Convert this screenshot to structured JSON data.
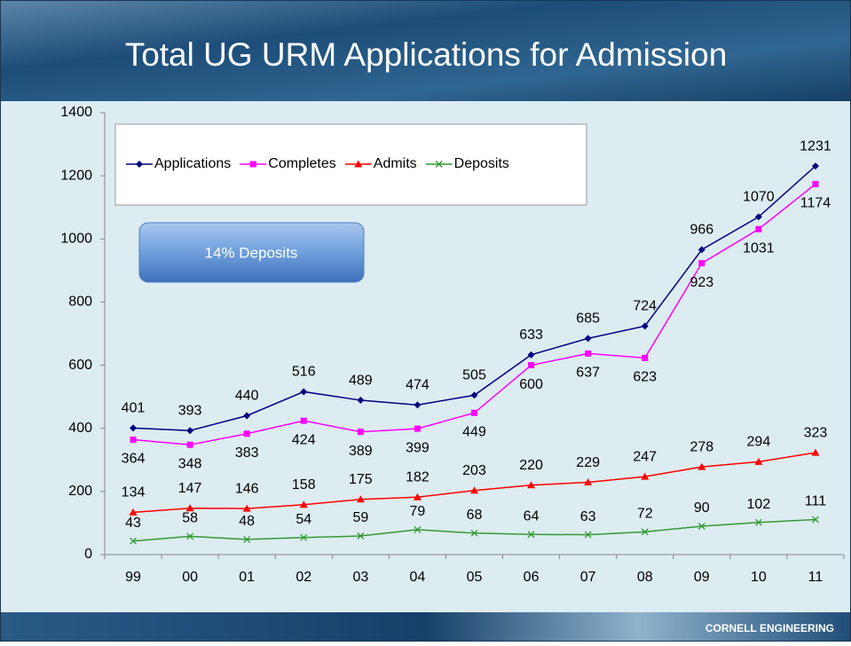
{
  "chart_data": {
    "type": "line",
    "title": "Total UG URM Applications for Admission",
    "categories": [
      "99",
      "00",
      "01",
      "02",
      "03",
      "04",
      "05",
      "06",
      "07",
      "08",
      "09",
      "10",
      "11"
    ],
    "series": [
      {
        "name": "Applications",
        "color": "#000080",
        "marker": "diamond",
        "values": [
          401,
          393,
          440,
          516,
          489,
          474,
          505,
          633,
          685,
          724,
          966,
          1070,
          1231
        ]
      },
      {
        "name": "Completes",
        "color": "#ff00ff",
        "marker": "square",
        "values": [
          364,
          348,
          383,
          424,
          389,
          399,
          449,
          600,
          637,
          623,
          923,
          1031,
          1174
        ]
      },
      {
        "name": "Admits",
        "color": "#ff0000",
        "marker": "triangle",
        "values": [
          134,
          147,
          146,
          158,
          175,
          182,
          203,
          220,
          229,
          247,
          278,
          294,
          323
        ]
      },
      {
        "name": "Deposits",
        "color": "#339933",
        "marker": "x",
        "values": [
          43,
          58,
          48,
          54,
          59,
          79,
          68,
          64,
          63,
          72,
          90,
          102,
          111
        ]
      }
    ],
    "ylim": [
      0,
      1400
    ],
    "yticks": [
      0,
      200,
      400,
      600,
      800,
      1000,
      1200,
      1400
    ],
    "annotation": "14% Deposits",
    "footer": "CORNELL ENGINEERING"
  }
}
